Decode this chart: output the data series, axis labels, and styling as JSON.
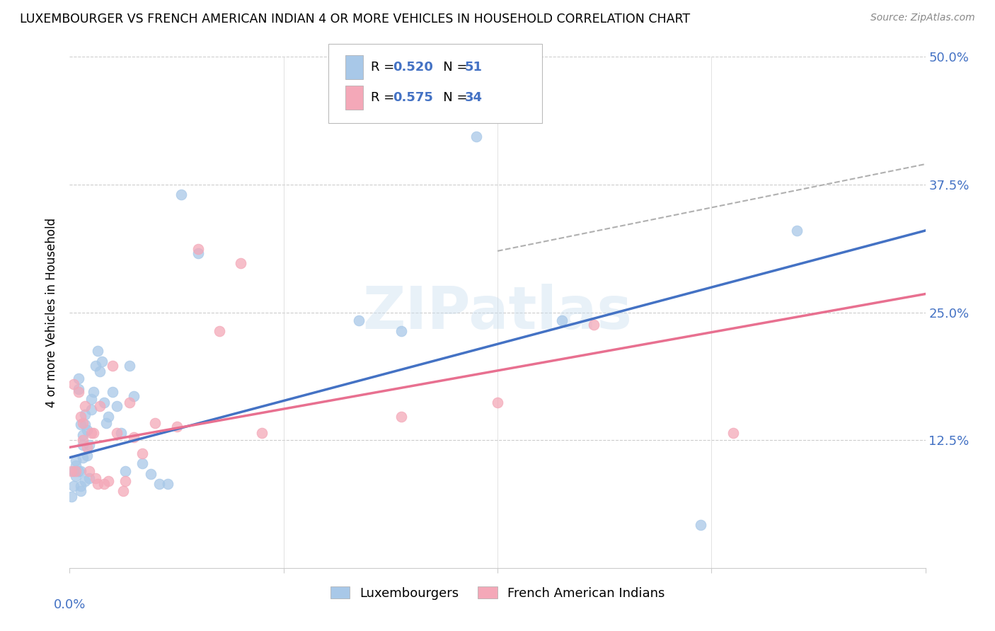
{
  "title": "LUXEMBOURGER VS FRENCH AMERICAN INDIAN 4 OR MORE VEHICLES IN HOUSEHOLD CORRELATION CHART",
  "source": "Source: ZipAtlas.com",
  "ylabel": "4 or more Vehicles in Household",
  "legend_blue_label": "Luxembourgers",
  "legend_pink_label": "French American Indians",
  "blue_color": "#a8c8e8",
  "pink_color": "#f4a8b8",
  "blue_line_color": "#4472c4",
  "pink_line_color": "#e87090",
  "dashed_line_color": "#b0b0b0",
  "watermark": "ZIPatlas",
  "xlim": [
    0.0,
    0.4
  ],
  "ylim": [
    0.0,
    0.5
  ],
  "blue_scatter_x": [
    0.001,
    0.002,
    0.002,
    0.003,
    0.003,
    0.003,
    0.004,
    0.004,
    0.004,
    0.005,
    0.005,
    0.005,
    0.005,
    0.006,
    0.006,
    0.006,
    0.007,
    0.007,
    0.007,
    0.008,
    0.008,
    0.009,
    0.009,
    0.01,
    0.01,
    0.011,
    0.012,
    0.013,
    0.014,
    0.015,
    0.016,
    0.017,
    0.018,
    0.02,
    0.022,
    0.024,
    0.026,
    0.028,
    0.03,
    0.034,
    0.038,
    0.042,
    0.046,
    0.052,
    0.135,
    0.155,
    0.19,
    0.23,
    0.295,
    0.06,
    0.34
  ],
  "blue_scatter_y": [
    0.07,
    0.08,
    0.095,
    0.1,
    0.09,
    0.105,
    0.175,
    0.185,
    0.095,
    0.14,
    0.095,
    0.08,
    0.075,
    0.12,
    0.13,
    0.108,
    0.14,
    0.15,
    0.085,
    0.135,
    0.11,
    0.12,
    0.088,
    0.155,
    0.165,
    0.172,
    0.198,
    0.212,
    0.192,
    0.202,
    0.162,
    0.142,
    0.148,
    0.172,
    0.158,
    0.132,
    0.095,
    0.198,
    0.168,
    0.102,
    0.092,
    0.082,
    0.082,
    0.365,
    0.242,
    0.232,
    0.422,
    0.242,
    0.042,
    0.308,
    0.33
  ],
  "pink_scatter_x": [
    0.001,
    0.002,
    0.003,
    0.004,
    0.005,
    0.006,
    0.006,
    0.007,
    0.008,
    0.009,
    0.01,
    0.011,
    0.012,
    0.013,
    0.014,
    0.016,
    0.018,
    0.02,
    0.022,
    0.025,
    0.026,
    0.028,
    0.03,
    0.034,
    0.04,
    0.05,
    0.06,
    0.07,
    0.08,
    0.09,
    0.155,
    0.2,
    0.245,
    0.31
  ],
  "pink_scatter_y": [
    0.095,
    0.18,
    0.095,
    0.172,
    0.148,
    0.142,
    0.125,
    0.158,
    0.118,
    0.095,
    0.132,
    0.132,
    0.088,
    0.082,
    0.158,
    0.082,
    0.085,
    0.198,
    0.132,
    0.075,
    0.085,
    0.162,
    0.128,
    0.112,
    0.142,
    0.138,
    0.312,
    0.232,
    0.298,
    0.132,
    0.148,
    0.162,
    0.238,
    0.132
  ],
  "blue_line_x": [
    0.0,
    0.4
  ],
  "blue_line_y": [
    0.108,
    0.33
  ],
  "pink_line_x": [
    0.0,
    0.4
  ],
  "pink_line_y": [
    0.118,
    0.268
  ],
  "dashed_line_x": [
    0.2,
    0.4
  ],
  "dashed_line_y": [
    0.31,
    0.395
  ],
  "xticks": [
    0.0,
    0.1,
    0.2,
    0.3,
    0.4
  ],
  "yticks": [
    0.0,
    0.125,
    0.25,
    0.375,
    0.5
  ],
  "ytick_labels_right": [
    "",
    "12.5%",
    "25.0%",
    "37.5%",
    "50.0%"
  ]
}
